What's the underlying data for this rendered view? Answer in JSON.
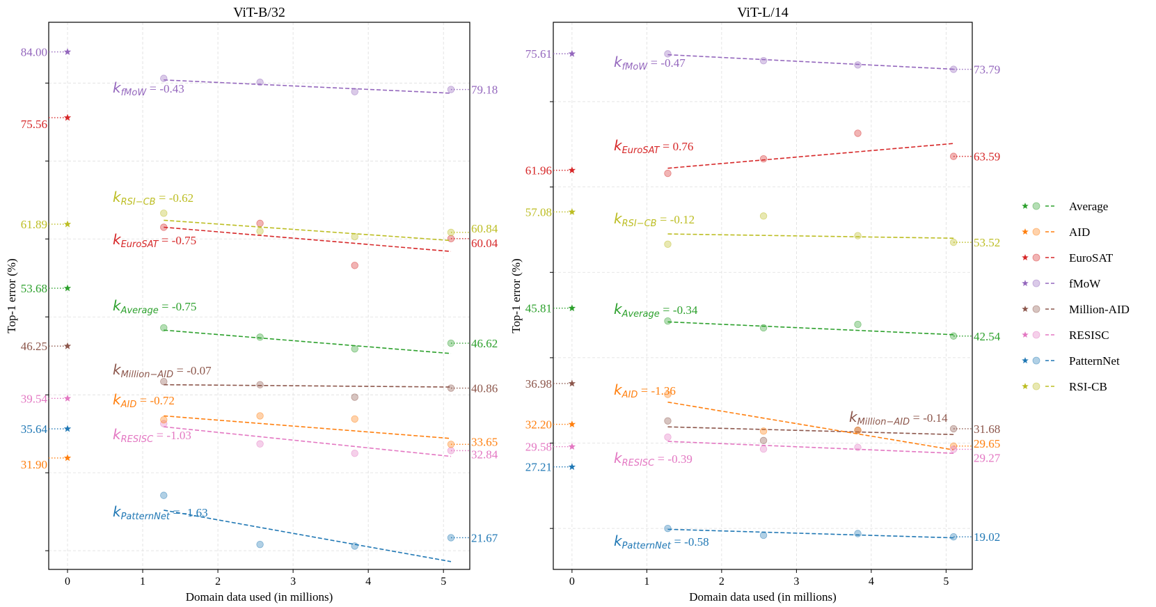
{
  "chart_data": [
    {
      "type": "scatter",
      "title": "ViT-B/32",
      "xlabel": "Domain data used (in millions)",
      "ylabel": "Top-1 error (%)",
      "xlim": [
        -0.25,
        5.35
      ],
      "ylim": [
        17.6,
        87.8
      ],
      "xticks": [
        0,
        1,
        2,
        3,
        4,
        5
      ],
      "x": [
        1.28,
        2.56,
        3.82,
        5.1
      ],
      "grid": true,
      "series": [
        {
          "name": "fMoW",
          "color": "#9467bd",
          "zero_value": 84.0,
          "zero_label": "84.00",
          "values": [
            80.6,
            80.1,
            78.9,
            79.18
          ],
          "fit": [
            80.4,
            78.7
          ],
          "end_label": "79.18",
          "k_sub": "fMoW",
          "k_value": "-0.43"
        },
        {
          "name": "EuroSAT",
          "color": "#d62728",
          "zero_value": 75.56,
          "zero_label": "75.56",
          "values": [
            61.5,
            62.0,
            56.6,
            60.04
          ],
          "fit": [
            61.5,
            58.4
          ],
          "end_label": "60.04",
          "k_sub": "EuroSAT",
          "k_value": "-0.75"
        },
        {
          "name": "RSI-CB",
          "color": "#bcbd22",
          "zero_value": 61.89,
          "zero_label": "61.89",
          "values": [
            63.3,
            61.0,
            60.3,
            60.84
          ],
          "fit": [
            62.4,
            59.8
          ],
          "end_label": "60.84",
          "k_sub": "RSI−CB",
          "k_value": "-0.62"
        },
        {
          "name": "Average",
          "color": "#2ca02c",
          "zero_value": 53.68,
          "zero_label": "53.68",
          "values": [
            48.6,
            47.4,
            45.9,
            46.62
          ],
          "fit": [
            48.3,
            45.3
          ],
          "end_label": "46.62",
          "k_sub": "Average",
          "k_value": "-0.75"
        },
        {
          "name": "Million-AID",
          "color": "#8c564b",
          "zero_value": 46.25,
          "zero_label": "46.25",
          "values": [
            41.7,
            41.3,
            39.7,
            40.86
          ],
          "fit": [
            41.3,
            41.0
          ],
          "end_label": "40.86",
          "k_sub": "Million−AID",
          "k_value": "-0.07"
        },
        {
          "name": "RESISC",
          "color": "#e377c2",
          "zero_value": 39.54,
          "zero_label": "39.54",
          "values": [
            36.3,
            33.7,
            32.5,
            32.84
          ],
          "fit": [
            35.9,
            32.1
          ],
          "end_label": "32.84",
          "k_sub": "RESISC",
          "k_value": "-1.03"
        },
        {
          "name": "PatternNet",
          "color": "#1f77b4",
          "zero_value": 35.64,
          "zero_label": "35.64",
          "values": [
            27.1,
            20.8,
            20.6,
            21.67
          ],
          "fit": [
            25.2,
            18.6
          ],
          "end_label": "21.67",
          "k_sub": "PatternNet",
          "k_value": "-1.63"
        },
        {
          "name": "AID",
          "color": "#ff7f0e",
          "zero_value": 31.9,
          "zero_label": "31.90",
          "values": [
            36.8,
            37.3,
            36.9,
            33.65
          ],
          "fit": [
            37.3,
            34.4
          ],
          "end_label": "33.65",
          "k_sub": "AID",
          "k_value": "-0.72"
        }
      ]
    },
    {
      "type": "scatter",
      "title": "ViT-L/14",
      "xlabel": "Domain data used (in millions)",
      "ylabel": "Top-1 error (%)",
      "xlim": [
        -0.25,
        5.35
      ],
      "ylim": [
        15.2,
        79.3
      ],
      "xticks": [
        0,
        1,
        2,
        3,
        4,
        5
      ],
      "x": [
        1.28,
        2.56,
        3.82,
        5.1
      ],
      "grid": true,
      "series": [
        {
          "name": "fMoW",
          "color": "#9467bd",
          "zero_value": 75.61,
          "zero_label": "75.61",
          "values": [
            75.6,
            74.8,
            74.3,
            73.79
          ],
          "fit": [
            75.5,
            73.8
          ],
          "end_label": "73.79",
          "k_sub": "fMoW",
          "k_value": "-0.47"
        },
        {
          "name": "EuroSAT",
          "color": "#d62728",
          "zero_value": 61.96,
          "zero_label": "61.96",
          "values": [
            61.6,
            63.3,
            66.3,
            63.59
          ],
          "fit": [
            62.2,
            65.1
          ],
          "end_label": "63.59",
          "k_sub": "EuroSAT",
          "k_value": "0.76"
        },
        {
          "name": "RSI-CB",
          "color": "#bcbd22",
          "zero_value": 57.08,
          "zero_label": "57.08",
          "values": [
            53.3,
            56.6,
            54.3,
            53.52
          ],
          "fit": [
            54.5,
            54.0
          ],
          "end_label": "53.52",
          "k_sub": "RSI−CB",
          "k_value": "-0.12"
        },
        {
          "name": "Average",
          "color": "#2ca02c",
          "zero_value": 45.81,
          "zero_label": "45.81",
          "values": [
            44.3,
            43.5,
            43.9,
            42.54
          ],
          "fit": [
            44.2,
            42.7
          ],
          "end_label": "42.54",
          "k_sub": "Average",
          "k_value": "-0.34"
        },
        {
          "name": "Million-AID",
          "color": "#8c564b",
          "zero_value": 36.98,
          "zero_label": "36.98",
          "values": [
            32.6,
            30.3,
            31.5,
            31.68
          ],
          "fit": [
            31.9,
            31.0
          ],
          "end_label": "31.68",
          "k_sub": "Million−AID",
          "k_value": "-0.14"
        },
        {
          "name": "AID",
          "color": "#ff7f0e",
          "zero_value": 32.2,
          "zero_label": "32.20",
          "values": [
            35.7,
            31.4,
            31.5,
            29.65
          ],
          "fit": [
            34.8,
            29.2
          ],
          "end_label": "29.65",
          "k_sub": "AID",
          "k_value": "-1.36"
        },
        {
          "name": "RESISC",
          "color": "#e377c2",
          "zero_value": 29.58,
          "zero_label": "29.58",
          "values": [
            30.7,
            29.3,
            29.5,
            29.27
          ],
          "fit": [
            30.2,
            28.8
          ],
          "end_label": "29.27",
          "k_sub": "RESISC",
          "k_value": "-0.39"
        },
        {
          "name": "PatternNet",
          "color": "#1f77b4",
          "zero_value": 27.21,
          "zero_label": "27.21",
          "values": [
            20.0,
            19.2,
            19.4,
            19.02
          ],
          "fit": [
            19.9,
            18.9
          ],
          "end_label": "19.02",
          "k_sub": "PatternNet",
          "k_value": "-0.58"
        }
      ]
    }
  ],
  "legend": {
    "position": "right",
    "entries": [
      {
        "label": "Average",
        "color": "#2ca02c"
      },
      {
        "label": "AID",
        "color": "#ff7f0e"
      },
      {
        "label": "EuroSAT",
        "color": "#d62728"
      },
      {
        "label": "fMoW",
        "color": "#9467bd"
      },
      {
        "label": "Million-AID",
        "color": "#8c564b"
      },
      {
        "label": "RESISC",
        "color": "#e377c2"
      },
      {
        "label": "PatternNet",
        "color": "#1f77b4"
      },
      {
        "label": "RSI-CB",
        "color": "#bcbd22"
      }
    ]
  }
}
